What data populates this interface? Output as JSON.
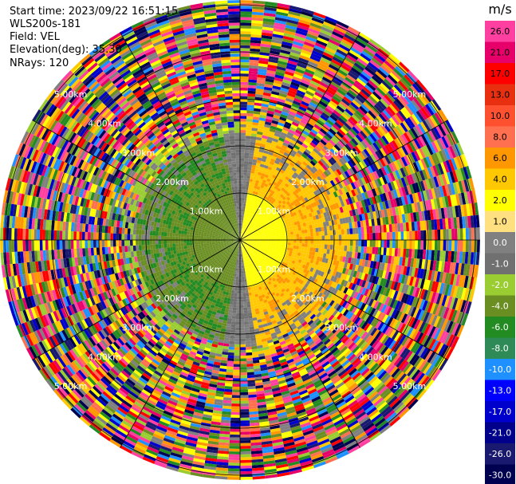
{
  "header": {
    "start_time": "Start time: 2023/09/22 16:51:15",
    "instrument": "WLS200s-181",
    "field": "Field: VEL",
    "elevation": "Elevation(deg): 35.30",
    "nrays": "NRays: 120"
  },
  "chart_data": {
    "type": "heatmap",
    "projection": "polar-ppi",
    "field": "VEL",
    "units": "m/s",
    "range_rings_km": [
      1,
      2,
      3,
      4,
      5
    ],
    "range_labels": [
      "1.00km",
      "2.00km",
      "3.00km",
      "4.00km",
      "5.00km"
    ],
    "n_rays": 120,
    "azimuth_lines_deg": [
      0,
      30,
      60,
      90,
      120,
      150,
      180,
      210,
      240,
      270,
      300,
      330
    ],
    "colorbar": {
      "title": "m/s",
      "ticks": [
        "26.0",
        "21.0",
        "17.0",
        "13.0",
        "10.0",
        "8.0",
        "6.0",
        "4.0",
        "2.0",
        "1.0",
        "0.0",
        "-1.0",
        "-2.0",
        "-4.0",
        "-6.0",
        "-8.0",
        "-10.0",
        "-13.0",
        "-17.0",
        "-21.0",
        "-26.0",
        "-30.0"
      ],
      "colors": [
        "#ff40a0",
        "#e8006a",
        "#ff0000",
        "#e83010",
        "#ff5030",
        "#ff7050",
        "#ff9800",
        "#ffc800",
        "#ffff00",
        "#ffe080",
        "#808080",
        "#707070",
        "#9acd32",
        "#6b8e23",
        "#228b22",
        "#2e8b57",
        "#1e90ff",
        "#0000ff",
        "#0000cd",
        "#00008b",
        "#191970",
        "#000050"
      ]
    },
    "pattern": {
      "clean_range_km": 2.2,
      "positive_sector": "east half (yellow/orange, +2 to +6 m/s)",
      "negative_sector": "west half (green, -2 to -6 m/s)",
      "far_range": "noisy multicolor beyond ~2.3 km"
    }
  }
}
